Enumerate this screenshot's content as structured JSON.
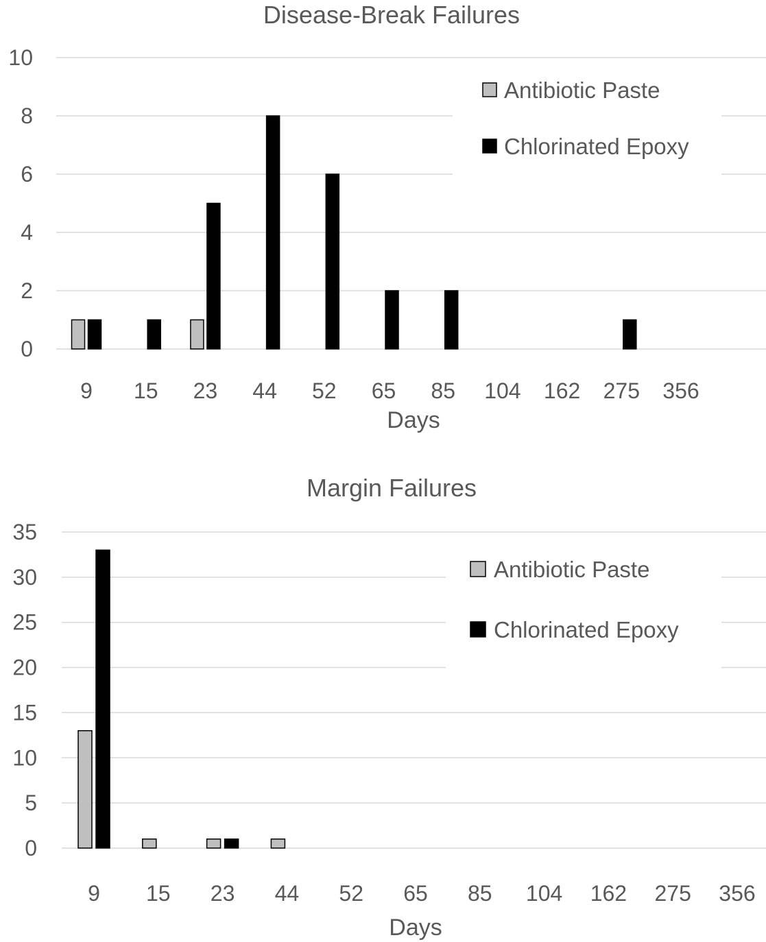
{
  "chart_data": [
    {
      "type": "bar",
      "title": "Disease-Break Failures",
      "xlabel": "Days",
      "ylabel": "",
      "categories": [
        "9",
        "15",
        "23",
        "44",
        "52",
        "65",
        "85",
        "104",
        "162",
        "275",
        "356"
      ],
      "series": [
        {
          "name": "Antibiotic Paste",
          "color": "#bfbfbf",
          "values": [
            1,
            0,
            1,
            0,
            0,
            0,
            0,
            0,
            0,
            0,
            0
          ]
        },
        {
          "name": "Chlorinated Epoxy",
          "color": "#000000",
          "values": [
            1,
            1,
            5,
            8,
            6,
            2,
            2,
            0,
            0,
            1,
            0
          ]
        }
      ],
      "ylim": [
        0,
        10
      ],
      "yticks": [
        0,
        2,
        4,
        6,
        8,
        10
      ],
      "grid": true,
      "legend": "top-right"
    },
    {
      "type": "bar",
      "title": "Margin Failures",
      "xlabel": "Days",
      "ylabel": "",
      "categories": [
        "9",
        "15",
        "23",
        "44",
        "52",
        "65",
        "85",
        "104",
        "162",
        "275",
        "356"
      ],
      "series": [
        {
          "name": "Antibiotic Paste",
          "color": "#bfbfbf",
          "values": [
            13,
            1,
            1,
            1,
            0,
            0,
            0,
            0,
            0,
            0,
            0
          ]
        },
        {
          "name": "Chlorinated Epoxy",
          "color": "#000000",
          "values": [
            33,
            0,
            1,
            0,
            0,
            0,
            0,
            0,
            0,
            0,
            0
          ]
        }
      ],
      "ylim": [
        0,
        35
      ],
      "yticks": [
        0,
        5,
        10,
        15,
        20,
        25,
        30,
        35
      ],
      "grid": true,
      "legend": "top-right"
    }
  ]
}
